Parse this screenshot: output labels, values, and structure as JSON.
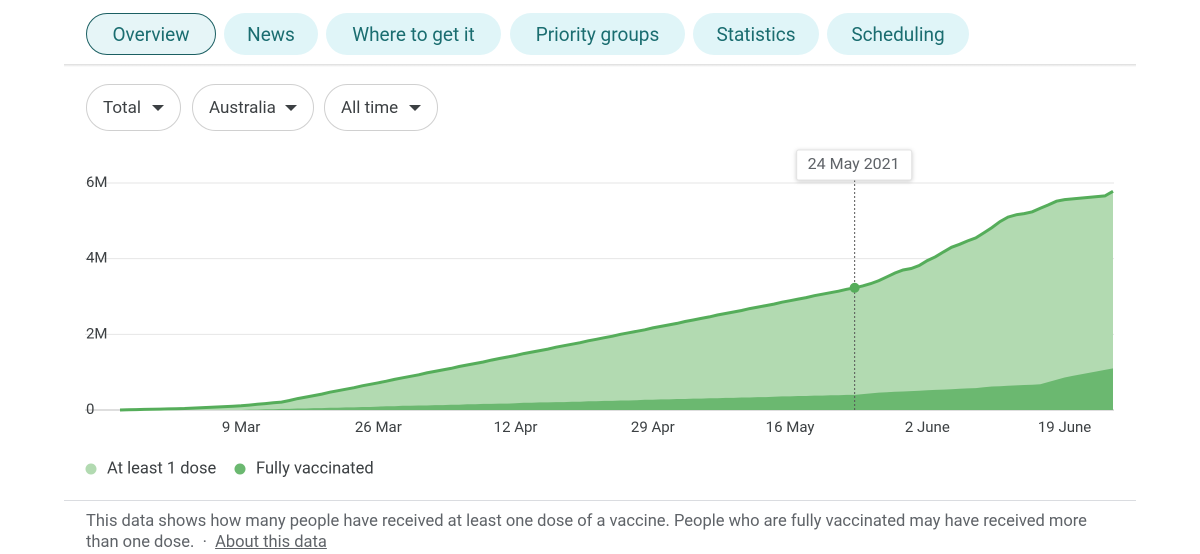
{
  "tabs": [
    "Overview",
    "News",
    "Where to get it",
    "Priority groups",
    "Statistics",
    "Scheduling"
  ],
  "filters": [
    "Total",
    "Australia",
    "All time"
  ],
  "chart_data": {
    "type": "area",
    "tooltip": "24 May 2021",
    "x": [
      "22 Feb",
      "23 Feb",
      "24 Feb",
      "25 Feb",
      "26 Feb",
      "27 Feb",
      "28 Feb",
      "1 Mar",
      "2 Mar",
      "3 Mar",
      "4 Mar",
      "5 Mar",
      "6 Mar",
      "7 Mar",
      "8 Mar",
      "9 Mar",
      "10 Mar",
      "11 Mar",
      "12 Mar",
      "13 Mar",
      "14 Mar",
      "15 Mar",
      "16 Mar",
      "17 Mar",
      "18 Mar",
      "19 Mar",
      "20 Mar",
      "21 Mar",
      "22 Mar",
      "23 Mar",
      "24 Mar",
      "25 Mar",
      "26 Mar",
      "27 Mar",
      "28 Mar",
      "29 Mar",
      "30 Mar",
      "31 Mar",
      "1 Apr",
      "2 Apr",
      "3 Apr",
      "4 Apr",
      "5 Apr",
      "6 Apr",
      "7 Apr",
      "8 Apr",
      "9 Apr",
      "10 Apr",
      "11 Apr",
      "12 Apr",
      "13 Apr",
      "14 Apr",
      "15 Apr",
      "16 Apr",
      "17 Apr",
      "18 Apr",
      "19 Apr",
      "20 Apr",
      "21 Apr",
      "22 Apr",
      "23 Apr",
      "24 Apr",
      "25 Apr",
      "26 Apr",
      "27 Apr",
      "28 Apr",
      "29 Apr",
      "30 Apr",
      "1 May",
      "2 May",
      "3 May",
      "4 May",
      "5 May",
      "6 May",
      "7 May",
      "8 May",
      "9 May",
      "10 May",
      "11 May",
      "12 May",
      "13 May",
      "14 May",
      "15 May",
      "16 May",
      "17 May",
      "18 May",
      "19 May",
      "20 May",
      "21 May",
      "22 May",
      "23 May",
      "24 May",
      "25 May",
      "26 May",
      "27 May",
      "28 May",
      "29 May",
      "30 May",
      "31 May",
      "1 June",
      "2 June",
      "3 June",
      "4 June",
      "5 June",
      "6 June",
      "7 June",
      "8 June",
      "9 June",
      "10 June",
      "11 June",
      "12 June",
      "13 June",
      "14 June",
      "15 June",
      "16 June",
      "17 June",
      "18 June",
      "19 June",
      "20 June",
      "21 June",
      "22 June",
      "23 June",
      "24 June",
      "25 June"
    ],
    "xticks": [
      "9 Mar",
      "26 Mar",
      "12 Apr",
      "29 Apr",
      "16 May",
      "2 June",
      "19 June"
    ],
    "ylim": [
      0,
      6
    ],
    "yticks": [
      0,
      {
        "value": 2,
        "label": "2M"
      },
      {
        "value": 4,
        "label": "4M"
      },
      {
        "value": 6,
        "label": "6M"
      }
    ],
    "grid": true,
    "series": [
      {
        "name": "At least 1 dose",
        "color": "#b2dab1",
        "line_color": "#55ad5a",
        "values": [
          0,
          0.005,
          0.01,
          0.015,
          0.02,
          0.025,
          0.03,
          0.035,
          0.04,
          0.05,
          0.06,
          0.07,
          0.08,
          0.09,
          0.1,
          0.11,
          0.13,
          0.15,
          0.17,
          0.19,
          0.21,
          0.25,
          0.3,
          0.34,
          0.38,
          0.42,
          0.47,
          0.51,
          0.55,
          0.59,
          0.64,
          0.68,
          0.72,
          0.76,
          0.81,
          0.85,
          0.89,
          0.93,
          0.98,
          1.02,
          1.06,
          1.1,
          1.15,
          1.19,
          1.23,
          1.27,
          1.32,
          1.36,
          1.4,
          1.44,
          1.49,
          1.53,
          1.57,
          1.61,
          1.66,
          1.7,
          1.74,
          1.78,
          1.83,
          1.87,
          1.91,
          1.95,
          2.0,
          2.04,
          2.08,
          2.12,
          2.17,
          2.21,
          2.25,
          2.29,
          2.34,
          2.38,
          2.42,
          2.46,
          2.51,
          2.55,
          2.59,
          2.63,
          2.68,
          2.72,
          2.76,
          2.8,
          2.85,
          2.89,
          2.93,
          2.97,
          3.02,
          3.06,
          3.1,
          3.14,
          3.19,
          3.23,
          3.28,
          3.34,
          3.42,
          3.52,
          3.62,
          3.7,
          3.74,
          3.82,
          3.95,
          4.05,
          4.18,
          4.3,
          4.38,
          4.47,
          4.55,
          4.68,
          4.82,
          4.98,
          5.1,
          5.16,
          5.19,
          5.24,
          5.33,
          5.42,
          5.52,
          5.56,
          5.58,
          5.6,
          5.62,
          5.64,
          5.66,
          5.78
        ]
      },
      {
        "name": "Fully vaccinated",
        "color": "#6bb870",
        "values": [
          0,
          0,
          0,
          0,
          0,
          0,
          0,
          0,
          0,
          0,
          0,
          0,
          0,
          0,
          0,
          0,
          0.01,
          0.01,
          0.02,
          0.02,
          0.03,
          0.03,
          0.04,
          0.04,
          0.05,
          0.05,
          0.06,
          0.06,
          0.07,
          0.07,
          0.08,
          0.08,
          0.09,
          0.1,
          0.1,
          0.11,
          0.11,
          0.12,
          0.12,
          0.13,
          0.13,
          0.14,
          0.14,
          0.15,
          0.15,
          0.16,
          0.16,
          0.17,
          0.17,
          0.18,
          0.19,
          0.19,
          0.2,
          0.2,
          0.21,
          0.21,
          0.22,
          0.22,
          0.23,
          0.23,
          0.24,
          0.24,
          0.25,
          0.25,
          0.26,
          0.27,
          0.27,
          0.28,
          0.28,
          0.29,
          0.29,
          0.3,
          0.3,
          0.31,
          0.31,
          0.32,
          0.32,
          0.33,
          0.33,
          0.34,
          0.34,
          0.35,
          0.36,
          0.36,
          0.37,
          0.37,
          0.38,
          0.38,
          0.39,
          0.39,
          0.4,
          0.4,
          0.42,
          0.44,
          0.46,
          0.47,
          0.48,
          0.49,
          0.5,
          0.51,
          0.52,
          0.53,
          0.54,
          0.55,
          0.56,
          0.57,
          0.58,
          0.6,
          0.62,
          0.63,
          0.64,
          0.65,
          0.66,
          0.67,
          0.68,
          0.74,
          0.8,
          0.86,
          0.9,
          0.94,
          0.98,
          1.02,
          1.06,
          1.1
        ]
      }
    ]
  },
  "footer": {
    "text": "This data shows how many people have received at least one dose of a vaccine. People who are fully vaccinated may have received more than one dose.",
    "separator": "·",
    "link": "About this data"
  }
}
